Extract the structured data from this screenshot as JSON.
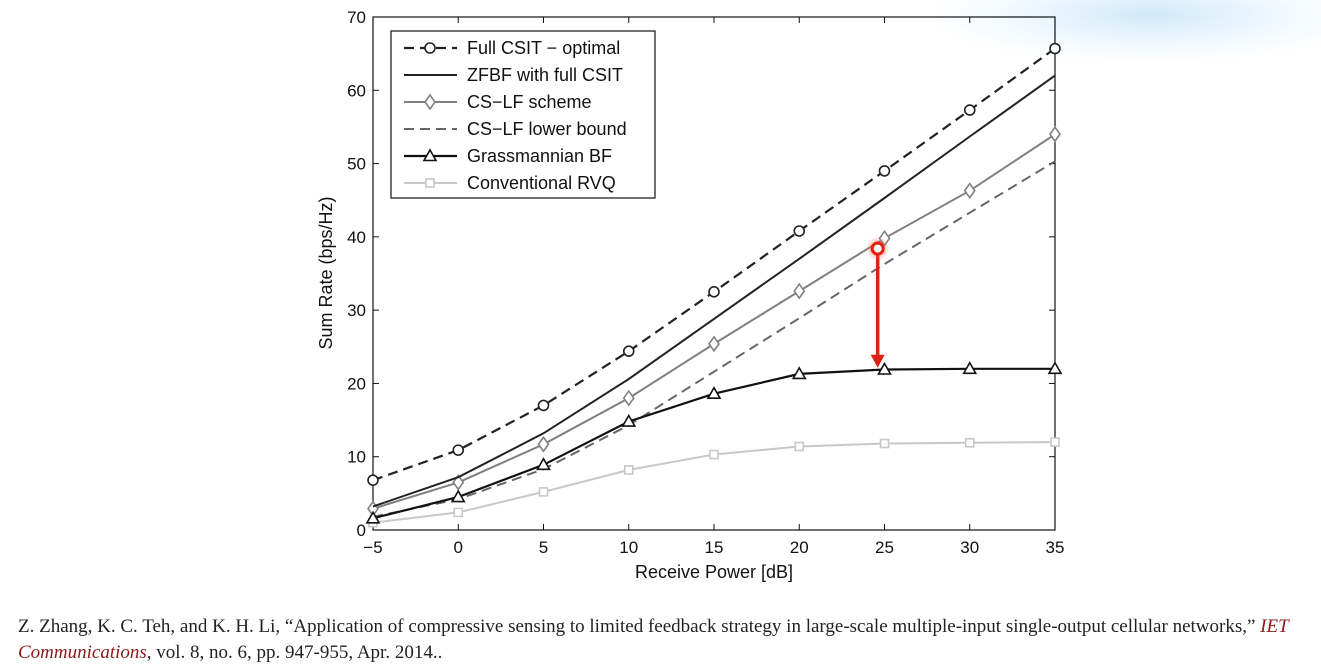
{
  "chart_data": {
    "type": "line",
    "title": "",
    "xlabel": "Receive Power [dB]",
    "ylabel": "Sum Rate (bps/Hz)",
    "xlim": [
      -5,
      35
    ],
    "ylim": [
      0,
      70
    ],
    "xticks": [
      -5,
      0,
      5,
      10,
      15,
      20,
      25,
      30,
      35
    ],
    "yticks": [
      0,
      10,
      20,
      30,
      40,
      50,
      60,
      70
    ],
    "grid": false,
    "legend_position": "top-left",
    "x": [
      -5,
      0,
      5,
      10,
      15,
      20,
      25,
      30,
      35
    ],
    "series": [
      {
        "name": "Full CSIT − optimal",
        "values": [
          6.8,
          10.9,
          17.0,
          24.4,
          32.5,
          40.8,
          49.0,
          57.3,
          65.7
        ],
        "color": "#222222",
        "dash": "dashed",
        "marker": "circle"
      },
      {
        "name": "ZFBF with full CSIT",
        "values": [
          3.2,
          7.2,
          13.2,
          20.6,
          28.8,
          37.0,
          45.3,
          53.7,
          62.0
        ],
        "color": "#222222",
        "dash": "solid",
        "marker": "none"
      },
      {
        "name": "CS−LF scheme",
        "values": [
          2.9,
          6.5,
          11.7,
          18.0,
          25.4,
          32.6,
          39.8,
          46.3,
          54.0
        ],
        "color": "#808080",
        "dash": "solid",
        "marker": "diamond"
      },
      {
        "name": "CS−LF lower bound",
        "values": [
          1.8,
          4.2,
          8.3,
          14.3,
          21.6,
          28.9,
          36.3,
          43.3,
          50.3
        ],
        "color": "#666666",
        "dash": "dashed",
        "marker": "none"
      },
      {
        "name": "Grassmannian BF",
        "values": [
          1.6,
          4.5,
          8.9,
          14.8,
          18.6,
          21.3,
          21.9,
          22.0,
          22.0
        ],
        "color": "#111111",
        "dash": "solid",
        "marker": "triangle"
      },
      {
        "name": "Conventional RVQ",
        "values": [
          1.0,
          2.4,
          5.2,
          8.2,
          10.3,
          11.4,
          11.8,
          11.9,
          12.0
        ],
        "color": "#c8c8c8",
        "dash": "solid",
        "marker": "square"
      }
    ],
    "annotation": {
      "type": "arrow",
      "color": "#e02010",
      "from": {
        "x": 24.6,
        "y": 38.4
      },
      "to": {
        "x": 24.6,
        "y": 22.0
      }
    }
  },
  "citation": {
    "authors": "Z. Zhang, K. C. Teh, and K. H. Li, “Application of compressive sensing to limited feedback strategy in large-scale multiple-input single-output cellular networks,”",
    "venue": "IET Communications",
    "details": ", vol. 8, no. 6, pp. 947-955, Apr. 2014.."
  }
}
